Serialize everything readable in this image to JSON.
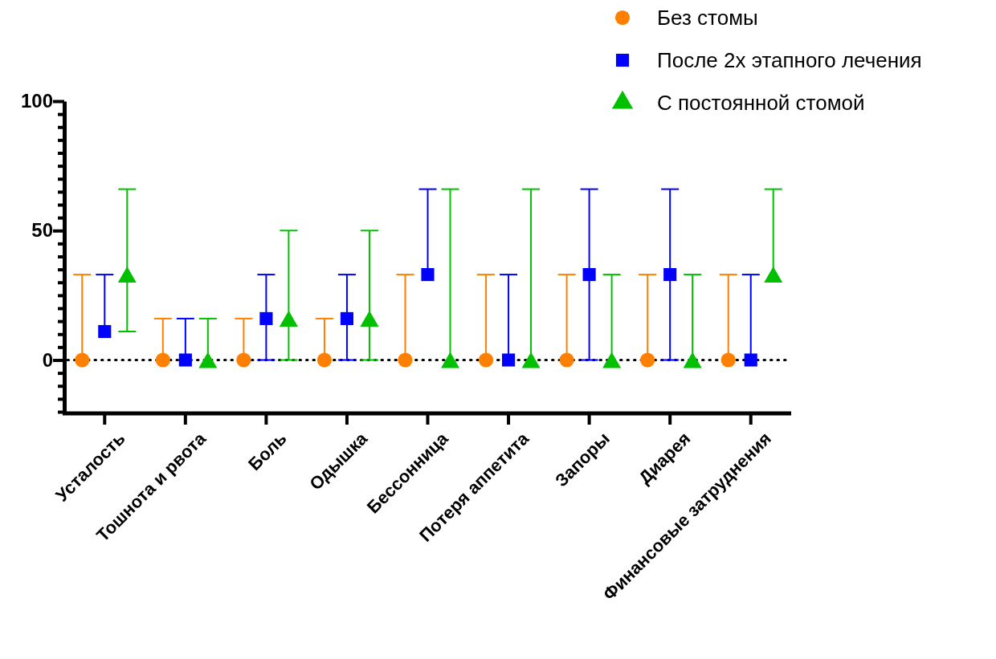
{
  "chart_data": {
    "type": "scatter",
    "categories": [
      "Усталость",
      "Тошнота и рвота",
      "Боль",
      "Одышка",
      "Бессонница",
      "Потеря аппетита",
      "Запоры",
      "Диарея",
      "Финансовые затруднения"
    ],
    "series": [
      {
        "name": "Без стомы",
        "color": "#ff8000",
        "marker": "circle",
        "values": [
          0,
          0,
          0,
          0,
          0,
          0,
          0,
          0,
          0
        ],
        "errors": [
          [
            0,
            33
          ],
          [
            0,
            16
          ],
          [
            0,
            16
          ],
          [
            0,
            16
          ],
          [
            0,
            33
          ],
          [
            0,
            33
          ],
          [
            0,
            33
          ],
          [
            0,
            33
          ],
          [
            0,
            33
          ]
        ]
      },
      {
        "name": "После 2х этапного лечения",
        "color": "#0000ff",
        "marker": "square",
        "values": [
          11,
          0,
          16,
          16,
          33,
          0,
          33,
          33,
          0
        ],
        "errors": [
          [
            11,
            33
          ],
          [
            0,
            16
          ],
          [
            0,
            33
          ],
          [
            0,
            33
          ],
          [
            33,
            66
          ],
          [
            0,
            33
          ],
          [
            0,
            66
          ],
          [
            0,
            66
          ],
          [
            0,
            33
          ]
        ]
      },
      {
        "name": "С постоянной стомой",
        "color": "#00c000",
        "marker": "triangle",
        "values": [
          33,
          0,
          16,
          16,
          0,
          0,
          0,
          0,
          33
        ],
        "errors": [
          [
            11,
            66
          ],
          [
            0,
            16
          ],
          [
            0,
            50
          ],
          [
            0,
            50
          ],
          [
            0,
            66
          ],
          [
            0,
            66
          ],
          [
            0,
            33
          ],
          [
            0,
            33
          ],
          [
            33,
            66
          ]
        ]
      }
    ],
    "ylim": [
      -20,
      100
    ],
    "yticks": [
      {
        "value": -20,
        "label": null
      },
      {
        "value": -15,
        "label": null
      },
      {
        "value": -10,
        "label": null
      },
      {
        "value": -5,
        "label": null
      },
      0,
      {
        "value": 5,
        "label": null
      },
      {
        "value": 10,
        "label": null
      },
      {
        "value": 15,
        "label": null
      },
      {
        "value": 20,
        "label": null
      },
      {
        "value": 25,
        "label": null
      },
      {
        "value": 30,
        "label": null
      },
      {
        "value": 35,
        "label": null
      },
      {
        "value": 40,
        "label": null
      },
      {
        "value": 45,
        "label": null
      },
      50,
      {
        "value": 55,
        "label": null
      },
      {
        "value": 60,
        "label": null
      },
      {
        "value": 65,
        "label": null
      },
      {
        "value": 70,
        "label": null
      },
      {
        "value": 75,
        "label": null
      },
      {
        "value": 80,
        "label": null
      },
      {
        "value": 85,
        "label": null
      },
      {
        "value": 90,
        "label": null
      },
      {
        "value": 95,
        "label": null
      },
      100
    ],
    "ref_lines": [
      {
        "axis": "y",
        "value": 0,
        "color": "#000000",
        "line_style": "dotted"
      }
    ],
    "grid": false,
    "legend": "top right"
  }
}
